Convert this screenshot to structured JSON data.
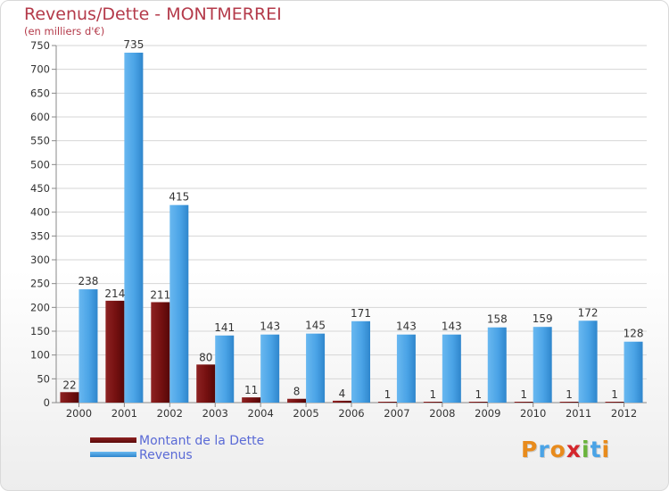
{
  "title": "Revenus/Dette - MONTMERREI",
  "subtitle": "(en milliers d'€)",
  "colors": {
    "dette": "#7a1010",
    "revenus": "#4aa3e6",
    "title": "#b43a4a",
    "legend_text": "#5a6ad6"
  },
  "legend": {
    "dette_label": "Montant de la Dette",
    "revenus_label": "Revenus"
  },
  "logo": {
    "letters": [
      "P",
      "r",
      "o",
      "x",
      "i",
      "t",
      "i"
    ],
    "colors": [
      "#e88b1c",
      "#4aa3e6",
      "#e88b1c",
      "#d4262c",
      "#6ab43c",
      "#4aa3e6",
      "#e88b1c"
    ]
  },
  "chart_data": {
    "type": "bar",
    "title": "Revenus/Dette - MONTMERREI",
    "ylabel": "(en milliers d'€)",
    "xlabel": "",
    "categories": [
      "2000",
      "2001",
      "2002",
      "2003",
      "2004",
      "2005",
      "2006",
      "2007",
      "2008",
      "2009",
      "2010",
      "2011",
      "2012"
    ],
    "series": [
      {
        "name": "Montant de la Dette",
        "values": [
          22,
          214,
          211,
          80,
          11,
          8,
          4,
          1,
          1,
          1,
          1,
          1,
          1
        ]
      },
      {
        "name": "Revenus",
        "values": [
          238,
          735,
          415,
          141,
          143,
          145,
          171,
          143,
          143,
          158,
          159,
          172,
          128
        ]
      }
    ],
    "ylim": [
      0,
      750
    ],
    "yticks": [
      0,
      50,
      100,
      150,
      200,
      250,
      300,
      350,
      400,
      450,
      500,
      550,
      600,
      650,
      700,
      750
    ],
    "grid": true,
    "legend_position": "bottom-left"
  }
}
